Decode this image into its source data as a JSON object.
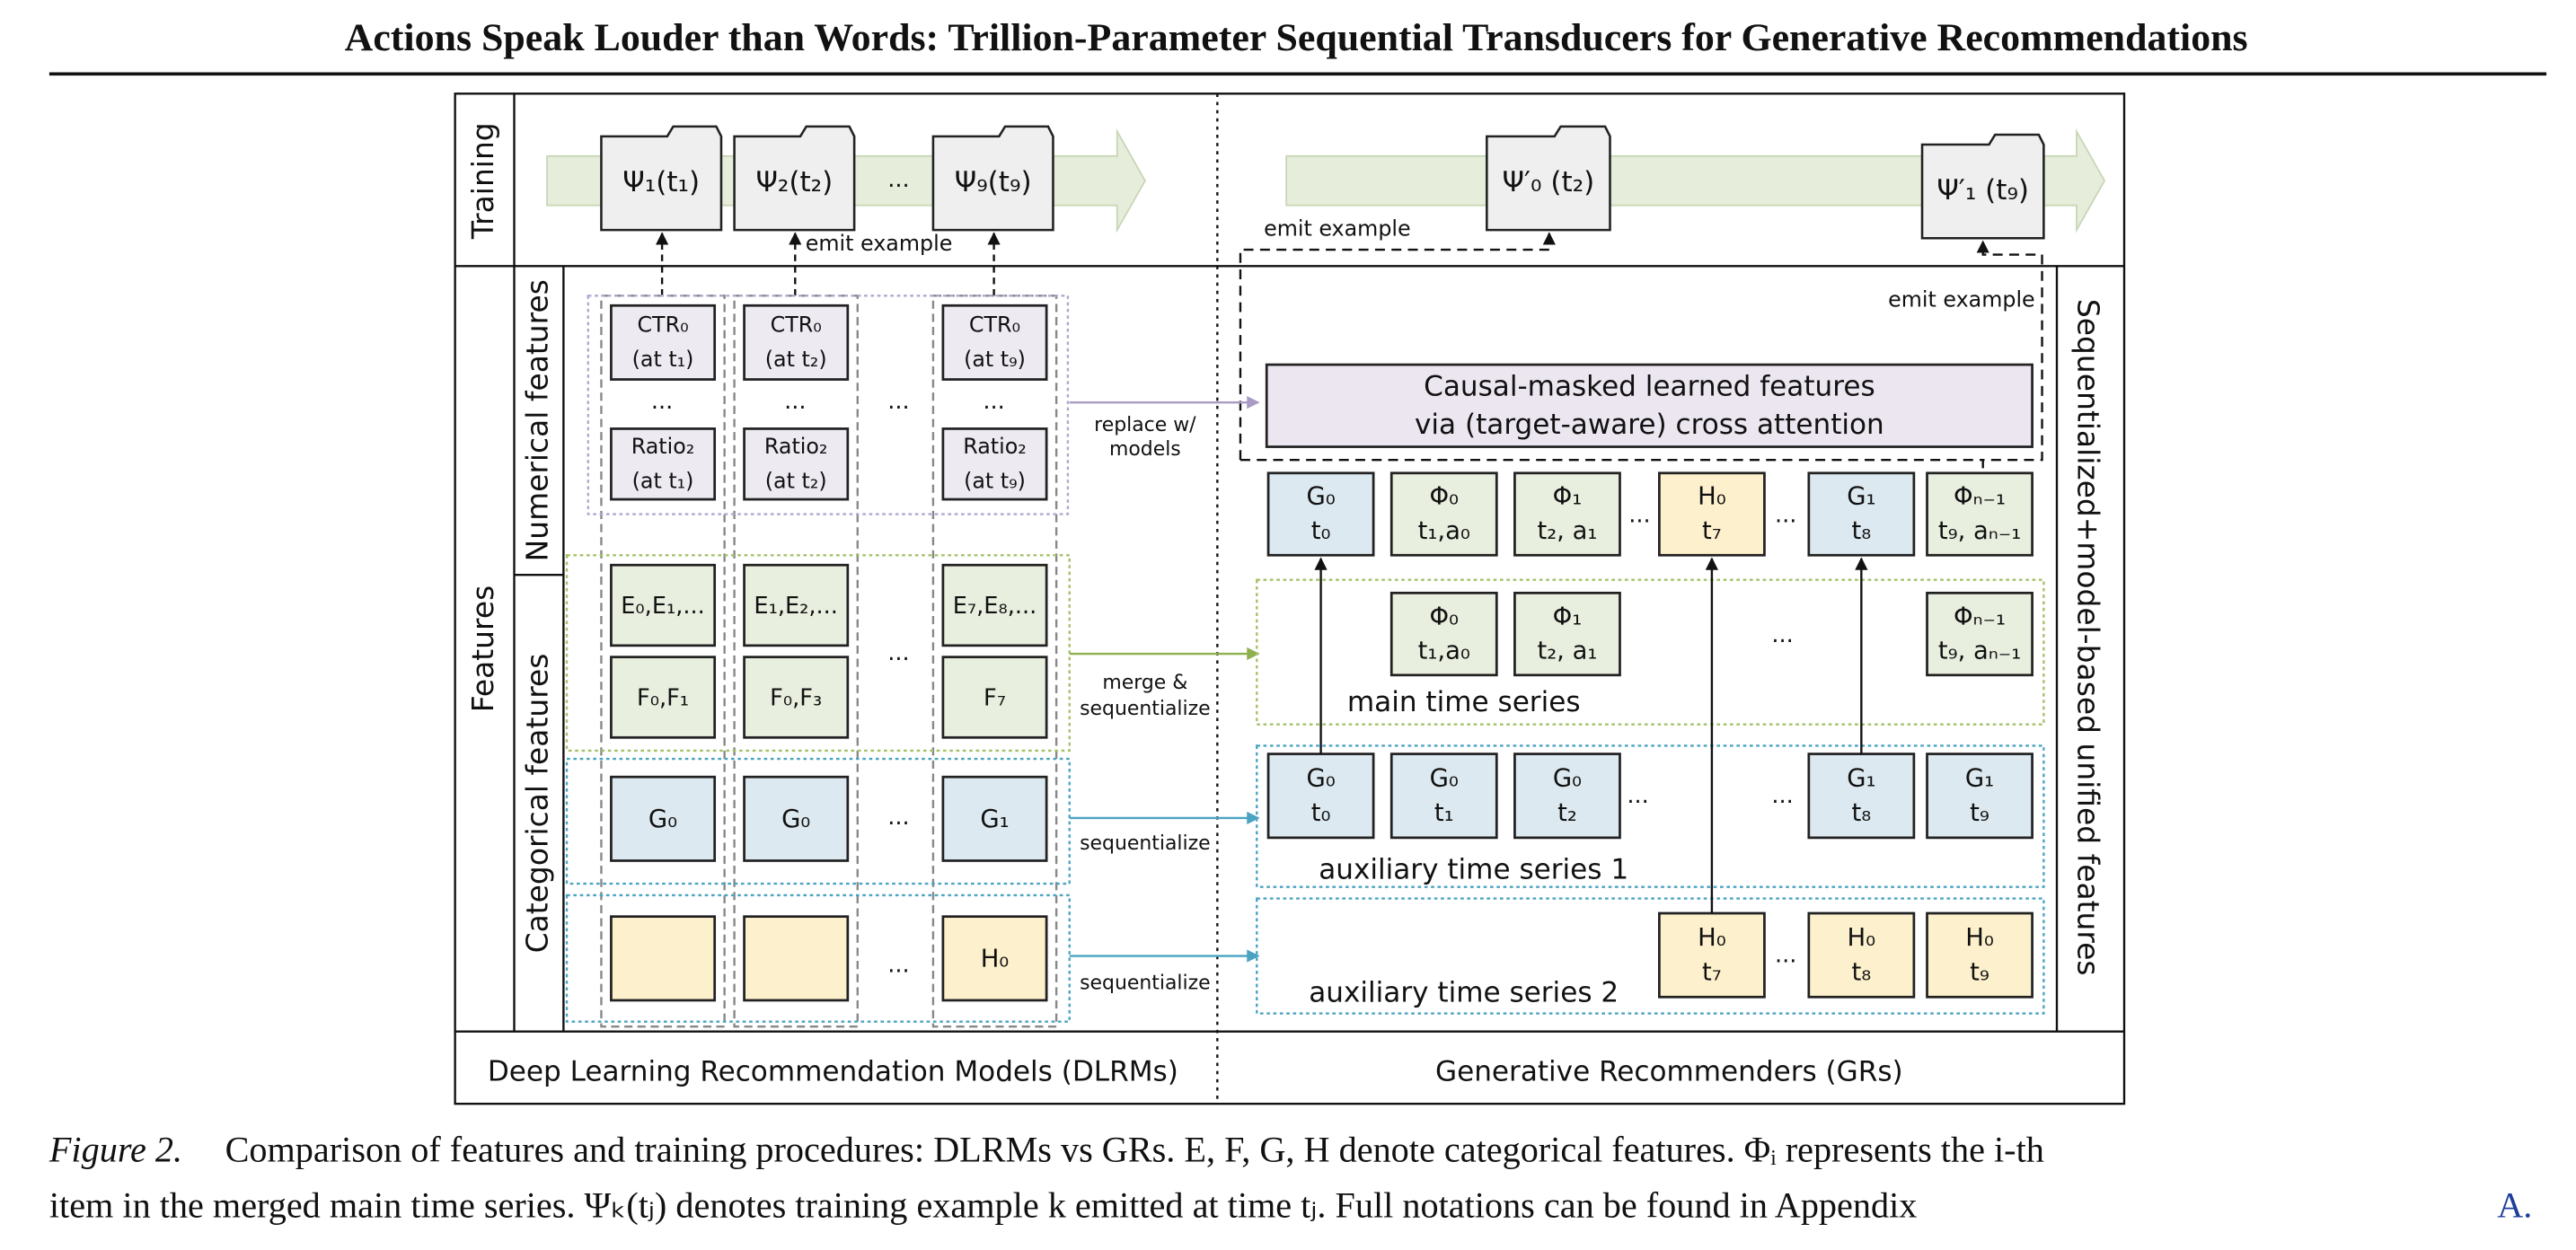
{
  "title": "Actions Speak Louder than Words: Trillion-Parameter Sequential Transducers for Generative Recommendations",
  "ellipsis": "...",
  "sections": {
    "training": "Training",
    "features": "Features",
    "numerical": "Numerical features",
    "categorical": "Categorical features",
    "unified": "Sequentialized+model-based unified features"
  },
  "training": {
    "dlrm_examples": [
      "Ψ₁(t₁)",
      "Ψ₂(t₂)",
      "Ψ₉(t₉)"
    ],
    "gr_examples": [
      "Ψ′₀ (t₂)",
      "Ψ′₁ (t₉)"
    ],
    "emit": "emit example"
  },
  "dlrm": {
    "ctr": [
      [
        "CTR₀",
        "(at t₁)"
      ],
      [
        "CTR₀",
        "(at t₂)"
      ],
      [
        "CTR₀",
        "(at t₉)"
      ]
    ],
    "ratio": [
      [
        "Ratio₂",
        "(at t₁)"
      ],
      [
        "Ratio₂",
        "(at t₂)"
      ],
      [
        "Ratio₂",
        "(at t₉)"
      ]
    ],
    "e": [
      "E₀,E₁,...",
      "E₁,E₂,...",
      "E₇,E₈,..."
    ],
    "f": [
      "F₀,F₁",
      "F₀,F₃",
      "F₇"
    ],
    "g": [
      "G₀",
      "G₀",
      "G₁"
    ],
    "h": "H₀"
  },
  "connectors": {
    "replace": [
      "replace w/",
      "models"
    ],
    "merge": [
      "merge &",
      "sequentialize"
    ],
    "sequentialize": "sequentialize"
  },
  "gr": {
    "causal": [
      "Causal-masked learned features",
      "via (target-aware) cross attention"
    ],
    "unified": [
      [
        "G₀",
        "t₀"
      ],
      [
        "Φ₀",
        "t₁,a₀"
      ],
      [
        "Φ₁",
        "t₂, a₁"
      ],
      [
        "H₀",
        "t₇"
      ],
      [
        "G₁",
        "t₈"
      ],
      [
        "Φₙ₋₁",
        "t₉, aₙ₋₁"
      ]
    ],
    "main": {
      "label": "main time series",
      "items": [
        [
          "Φ₀",
          "t₁,a₀"
        ],
        [
          "Φ₁",
          "t₂, a₁"
        ],
        [
          "Φₙ₋₁",
          "t₉, aₙ₋₁"
        ]
      ]
    },
    "aux1": {
      "label": "auxiliary time series 1",
      "items": [
        [
          "G₀",
          "t₀"
        ],
        [
          "G₀",
          "t₁"
        ],
        [
          "G₀",
          "t₂"
        ],
        [
          "G₁",
          "t₈"
        ],
        [
          "G₁",
          "t₉"
        ]
      ]
    },
    "aux2": {
      "label": "auxiliary time series 2",
      "items": [
        [
          "H₀",
          "t₇"
        ],
        [
          "H₀",
          "t₈"
        ],
        [
          "H₀",
          "t₉"
        ]
      ]
    }
  },
  "footer": {
    "dlrm": "Deep Learning Recommendation Models (DLRMs)",
    "gr": "Generative Recommenders (GRs)"
  },
  "caption": {
    "label": "Figure 2.",
    "line1": "Comparison of features and training procedures: DLRMs vs GRs. E, F, G, H denote categorical features. Φᵢ represents the i-th",
    "line2": "item in the merged main time series. Ψₖ(tⱼ) denotes training example k emitted at time tⱼ. Full notations can be found in Appendix",
    "link": "A."
  }
}
